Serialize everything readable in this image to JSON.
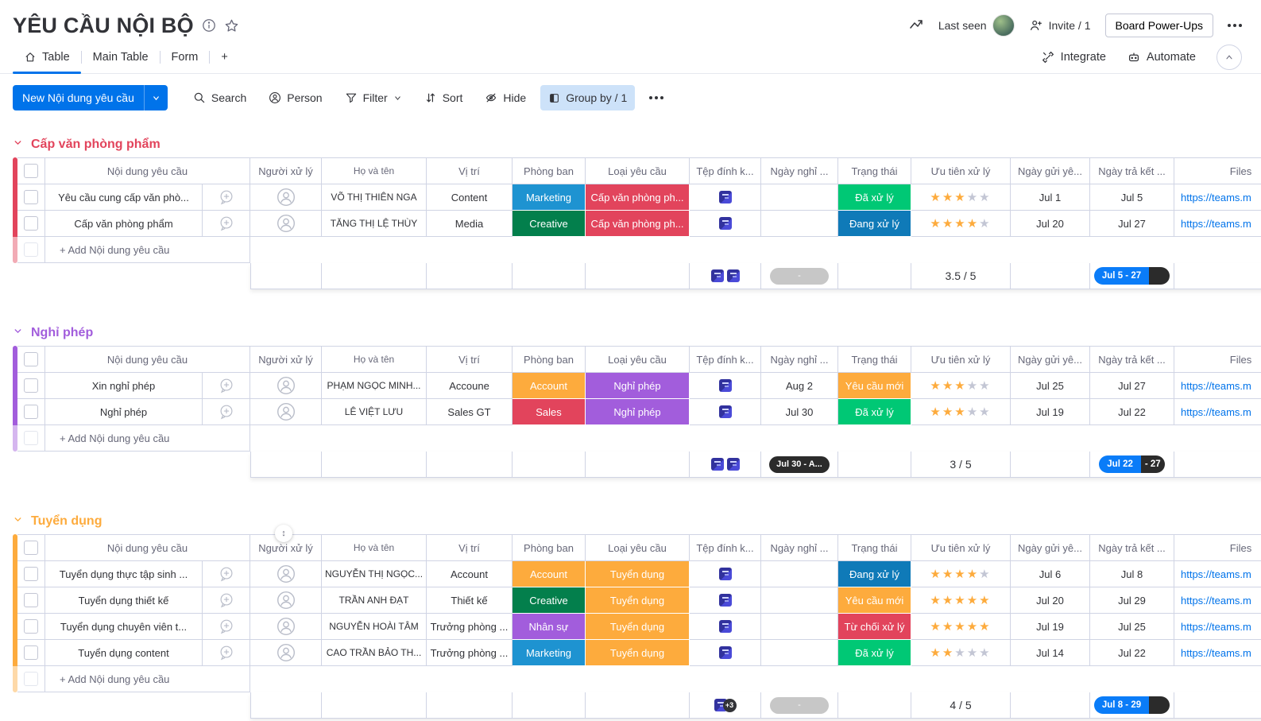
{
  "header": {
    "title": "YÊU CẦU NỘI BỘ",
    "last_seen": "Last seen",
    "invite": "Invite / 1",
    "board_power_ups": "Board Power-Ups",
    "integrate": "Integrate",
    "automate": "Automate"
  },
  "tabs": [
    {
      "label": "Table"
    },
    {
      "label": "Main Table"
    },
    {
      "label": "Form"
    },
    {
      "label": "+"
    }
  ],
  "toolbar": {
    "new_button": "New Nội dung yêu cầu",
    "search": "Search",
    "person": "Person",
    "filter": "Filter",
    "sort": "Sort",
    "hide": "Hide",
    "group_by": "Group by / 1"
  },
  "columns": [
    "Nội dung yêu cầu",
    "Người xử lý",
    "Họ và tên",
    "Vị trí",
    "Phòng ban",
    "Loại yêu cầu",
    "Tệp đính k...",
    "Ngày nghỉ ...",
    "Trạng thái",
    "Ưu tiên xử lý",
    "Ngày gửi yê...",
    "Ngày trả kết ...",
    "Files"
  ],
  "add_row_label": "+ Add Nội dung yêu cầu",
  "colors": {
    "accent": "#0073ea",
    "status_done": "#00c875",
    "status_working": "#0f7ab8",
    "status_new": "#fdab3d",
    "status_rejected": "#e2445c",
    "star_filled": "#fdab3d",
    "star_empty": "#c3c6d4",
    "link": "#0073ea",
    "timeline_blue": "#0a7cf8"
  },
  "groups": [
    {
      "title": "Cấp văn phòng phẩm",
      "color": "#e2445c",
      "resize_handle": false,
      "rows": [
        {
          "name": "Yêu cầu cung cấp văn phò...",
          "hoten": "VÕ THỊ THIÊN NGA",
          "vitri": "Content",
          "phongban": "Marketing",
          "phongban_color": "#1e93d1",
          "loai": "Cấp văn phòng ph...",
          "loai_color": "#e2445c",
          "ngaynghi": "",
          "trangthai": "Đã xử lý",
          "trangthai_color": "#00c875",
          "rating": 3,
          "ngaygui": "Jul 1",
          "ngaytra": "Jul 5",
          "files": "https://teams.m"
        },
        {
          "name": "Cấp văn phòng phẩm",
          "hoten": "TĂNG THỊ LỆ THÙY",
          "vitri": "Media",
          "phongban": "Creative",
          "phongban_color": "#037f4c",
          "loai": "Cấp văn phòng ph...",
          "loai_color": "#e2445c",
          "ngaynghi": "",
          "trangthai": "Đang xử lý",
          "trangthai_color": "#0f7ab8",
          "rating": 4,
          "ngaygui": "Jul 20",
          "ngaytra": "Jul 27",
          "files": "https://teams.m"
        }
      ],
      "summary": {
        "files_icons": 2,
        "files_badge": "",
        "nghi_pill_text": "-",
        "nghi_pill_style": "gray",
        "rating": "3.5 / 5",
        "timeline_blue": "Jul 5 - 27",
        "timeline_black": ""
      }
    },
    {
      "title": "Nghỉ phép",
      "color": "#a25ddc",
      "resize_handle": false,
      "rows": [
        {
          "name": "Xin nghỉ phép",
          "hoten": "PHẠM NGỌC MINH...",
          "vitri": "Accoune",
          "phongban": "Account",
          "phongban_color": "#fdab3d",
          "loai": "Nghỉ phép",
          "loai_color": "#a25ddc",
          "ngaynghi": "Aug 2",
          "trangthai": "Yêu cầu mới",
          "trangthai_color": "#fdab3d",
          "rating": 3,
          "ngaygui": "Jul 25",
          "ngaytra": "Jul 27",
          "files": "https://teams.m"
        },
        {
          "name": "Nghỉ phép",
          "hoten": "LÊ VIỆT LƯU",
          "vitri": "Sales GT",
          "phongban": "Sales",
          "phongban_color": "#e2445c",
          "loai": "Nghỉ phép",
          "loai_color": "#a25ddc",
          "ngaynghi": "Jul 30",
          "trangthai": "Đã xử lý",
          "trangthai_color": "#00c875",
          "rating": 3,
          "ngaygui": "Jul 19",
          "ngaytra": "Jul 22",
          "files": "https://teams.m"
        }
      ],
      "summary": {
        "files_icons": 2,
        "files_badge": "",
        "nghi_pill_text": "Jul 30 - A...",
        "nghi_pill_style": "dark",
        "rating": "3 / 5",
        "timeline_blue": "Jul 22",
        "timeline_black": "- 27"
      }
    },
    {
      "title": "Tuyển dụng",
      "color": "#fdab3d",
      "resize_handle": true,
      "rows": [
        {
          "name": "Tuyển dụng thực tập sinh ...",
          "hoten": "NGUYỄN THỊ NGỌC...",
          "vitri": "Account",
          "phongban": "Account",
          "phongban_color": "#fdab3d",
          "loai": "Tuyển dụng",
          "loai_color": "#fdab3d",
          "ngaynghi": "",
          "trangthai": "Đang xử lý",
          "trangthai_color": "#0f7ab8",
          "rating": 4,
          "ngaygui": "Jul 6",
          "ngaytra": "Jul 8",
          "files": "https://teams.m"
        },
        {
          "name": "Tuyển dụng thiết kế",
          "hoten": "TRẦN ANH ĐẠT",
          "vitri": "Thiết kế",
          "phongban": "Creative",
          "phongban_color": "#037f4c",
          "loai": "Tuyển dụng",
          "loai_color": "#fdab3d",
          "ngaynghi": "",
          "trangthai": "Yêu cầu mới",
          "trangthai_color": "#fdab3d",
          "rating": 5,
          "ngaygui": "Jul 20",
          "ngaytra": "Jul 29",
          "files": "https://teams.m"
        },
        {
          "name": "Tuyển dụng chuyên viên t...",
          "hoten": "NGUYỄN HOÀI TÂM",
          "vitri": "Trưởng phòng ...",
          "phongban": "Nhân sự",
          "phongban_color": "#a25ddc",
          "loai": "Tuyển dụng",
          "loai_color": "#fdab3d",
          "ngaynghi": "",
          "trangthai": "Từ chối xử lý",
          "trangthai_color": "#e2445c",
          "rating": 5,
          "ngaygui": "Jul 19",
          "ngaytra": "Jul 25",
          "files": "https://teams.m"
        },
        {
          "name": "Tuyển dụng content",
          "hoten": "CAO TRẦN BẢO TH...",
          "vitri": "Trưởng phòng ...",
          "phongban": "Marketing",
          "phongban_color": "#1e93d1",
          "loai": "Tuyển dụng",
          "loai_color": "#fdab3d",
          "ngaynghi": "",
          "trangthai": "Đã xử lý",
          "trangthai_color": "#00c875",
          "rating": 2,
          "ngaygui": "Jul 14",
          "ngaytra": "Jul 22",
          "files": "https://teams.m"
        }
      ],
      "summary": {
        "files_icons": 1,
        "files_badge": "+3",
        "nghi_pill_text": "-",
        "nghi_pill_style": "gray",
        "rating": "4 / 5",
        "timeline_blue": "Jul 8 - 29",
        "timeline_black": ""
      }
    }
  ]
}
